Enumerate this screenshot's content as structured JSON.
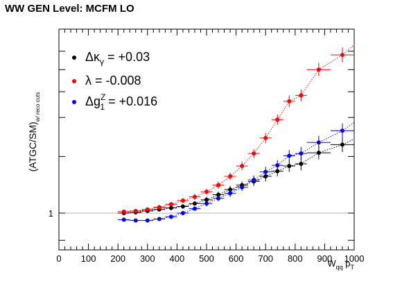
{
  "chart_data": {
    "type": "scatter",
    "title": "WW GEN Level: MCFM LO",
    "xlabel": {
      "main": "W",
      "sub": "qq",
      "mid": " p",
      "sub2": "T"
    },
    "ylabel": {
      "main": "(ATGC/SM)",
      "sub": "w/ reco cuts"
    },
    "xlim": [
      0,
      1000
    ],
    "ylim": [
      0.95,
      1.25
    ],
    "x_ticks": [
      "0",
      "100",
      "200",
      "300",
      "400",
      "500",
      "600",
      "700",
      "800",
      "900",
      "1000"
    ],
    "y_ticks": [
      "1"
    ],
    "reference_line_y": 1.0,
    "legend_placement": "top-left",
    "series": [
      {
        "legend": {
          "a": "Δκ",
          "sub": "γ",
          "b": " = +0.03"
        },
        "color": "#000000",
        "x": [
          220,
          260,
          300,
          340,
          380,
          420,
          460,
          500,
          540,
          580,
          620,
          660,
          700,
          740,
          780,
          820,
          880,
          960
        ],
        "y": [
          1.0,
          1.001,
          1.003,
          1.005,
          1.007,
          1.009,
          1.013,
          1.018,
          1.025,
          1.032,
          1.038,
          1.043,
          1.05,
          1.057,
          1.064,
          1.067,
          1.082,
          1.093
        ],
        "xerr": [
          20,
          20,
          20,
          20,
          20,
          20,
          20,
          20,
          20,
          20,
          20,
          20,
          20,
          20,
          20,
          20,
          40,
          40
        ],
        "yerr": [
          0.002,
          0.002,
          0.002,
          0.002,
          0.003,
          0.003,
          0.003,
          0.004,
          0.004,
          0.005,
          0.005,
          0.006,
          0.007,
          0.007,
          0.008,
          0.009,
          0.009,
          0.01
        ]
      },
      {
        "legend": {
          "a": "λ",
          "sub": "",
          "b": " = -0.008"
        },
        "color": "#ff0000",
        "x": [
          220,
          260,
          300,
          340,
          380,
          420,
          460,
          500,
          540,
          580,
          620,
          660,
          700,
          740,
          780,
          820,
          880,
          960
        ],
        "y": [
          1.002,
          1.003,
          1.005,
          1.008,
          1.012,
          1.017,
          1.022,
          1.029,
          1.038,
          1.05,
          1.064,
          1.081,
          1.102,
          1.127,
          1.152,
          1.16,
          1.195,
          1.215
        ],
        "xerr": [
          20,
          20,
          20,
          20,
          20,
          20,
          20,
          20,
          20,
          20,
          20,
          20,
          20,
          20,
          20,
          20,
          40,
          40
        ],
        "yerr": [
          0.002,
          0.002,
          0.002,
          0.003,
          0.003,
          0.003,
          0.004,
          0.004,
          0.005,
          0.005,
          0.006,
          0.006,
          0.007,
          0.007,
          0.008,
          0.008,
          0.009,
          0.01
        ]
      },
      {
        "legend": {
          "a": "Δg",
          "sub": "1",
          "sup": "Z",
          "b": " = +0.016"
        },
        "color": "#0000ff",
        "x": [
          220,
          260,
          300,
          340,
          380,
          420,
          460,
          500,
          540,
          580,
          620,
          660,
          700,
          740,
          780,
          820,
          880,
          960
        ],
        "y": [
          0.991,
          0.99,
          0.99,
          0.992,
          0.995,
          1.0,
          1.006,
          1.013,
          1.02,
          1.027,
          1.035,
          1.045,
          1.056,
          1.065,
          1.078,
          1.081,
          1.096,
          1.112
        ],
        "xerr": [
          20,
          20,
          20,
          20,
          20,
          20,
          20,
          20,
          20,
          20,
          20,
          20,
          20,
          20,
          20,
          20,
          40,
          40
        ],
        "yerr": [
          0.002,
          0.002,
          0.002,
          0.002,
          0.003,
          0.003,
          0.003,
          0.004,
          0.004,
          0.005,
          0.005,
          0.006,
          0.007,
          0.007,
          0.008,
          0.009,
          0.009,
          0.01
        ]
      }
    ]
  }
}
